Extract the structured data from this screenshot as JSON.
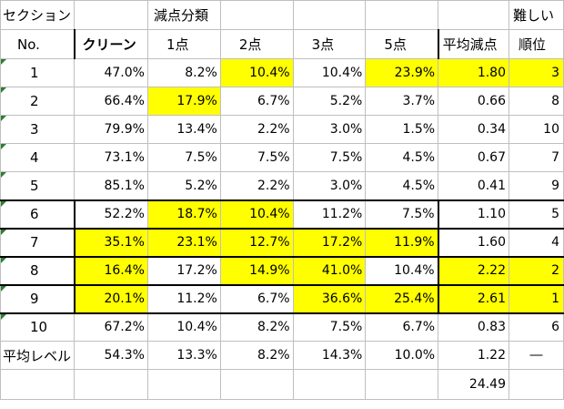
{
  "header_row1": {
    "col_section": "セクション",
    "col_group": "減点分類",
    "col_difficult": "難しい"
  },
  "header_row2": {
    "no": "No.",
    "clean": "クリーン",
    "p1": "1点",
    "p2": "2点",
    "p3": "3点",
    "p5": "5点",
    "avg": "平均減点",
    "rank": "順位"
  },
  "rows": [
    {
      "no": "1",
      "clean": "47.0%",
      "p1": "8.2%",
      "p2": "10.4%",
      "p3": "10.4%",
      "p5": "23.9%",
      "avg": "1.80",
      "rank": "3"
    },
    {
      "no": "2",
      "clean": "66.4%",
      "p1": "17.9%",
      "p2": "6.7%",
      "p3": "5.2%",
      "p5": "3.7%",
      "avg": "0.66",
      "rank": "8"
    },
    {
      "no": "3",
      "clean": "79.9%",
      "p1": "13.4%",
      "p2": "2.2%",
      "p3": "3.0%",
      "p5": "1.5%",
      "avg": "0.34",
      "rank": "10"
    },
    {
      "no": "4",
      "clean": "73.1%",
      "p1": "7.5%",
      "p2": "7.5%",
      "p3": "7.5%",
      "p5": "4.5%",
      "avg": "0.67",
      "rank": "7"
    },
    {
      "no": "5",
      "clean": "85.1%",
      "p1": "5.2%",
      "p2": "2.2%",
      "p3": "3.0%",
      "p5": "4.5%",
      "avg": "0.41",
      "rank": "9"
    },
    {
      "no": "6",
      "clean": "52.2%",
      "p1": "18.7%",
      "p2": "10.4%",
      "p3": "11.2%",
      "p5": "7.5%",
      "avg": "1.10",
      "rank": "5"
    },
    {
      "no": "7",
      "clean": "35.1%",
      "p1": "23.1%",
      "p2": "12.7%",
      "p3": "17.2%",
      "p5": "11.9%",
      "avg": "1.60",
      "rank": "4"
    },
    {
      "no": "8",
      "clean": "16.4%",
      "p1": "17.2%",
      "p2": "14.9%",
      "p3": "41.0%",
      "p5": "10.4%",
      "avg": "2.22",
      "rank": "2"
    },
    {
      "no": "9",
      "clean": "20.1%",
      "p1": "11.2%",
      "p2": "6.7%",
      "p3": "36.6%",
      "p5": "25.4%",
      "avg": "2.61",
      "rank": "1"
    },
    {
      "no": "10",
      "clean": "67.2%",
      "p1": "10.4%",
      "p2": "8.2%",
      "p3": "7.5%",
      "p5": "6.7%",
      "avg": "0.83",
      "rank": "6"
    }
  ],
  "average_row": {
    "label": "平均レベル",
    "clean": "54.3%",
    "p1": "13.3%",
    "p2": "8.2%",
    "p3": "14.3%",
    "p5": "10.0%",
    "avg": "1.22",
    "rank": "―"
  },
  "total": "24.49",
  "highlight_color": "#ffff00"
}
